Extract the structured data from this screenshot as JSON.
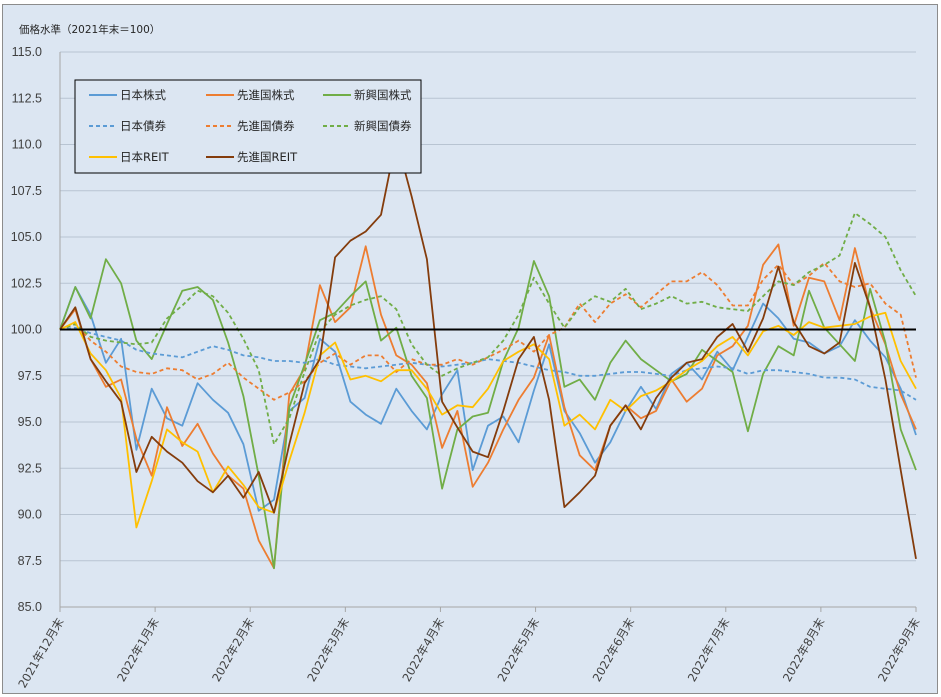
{
  "chart_data": {
    "type": "line",
    "title": "",
    "ylabel": "価格水準（2021年末＝100）",
    "xlabel": "",
    "ylim": [
      85,
      115
    ],
    "yticks": [
      "85.0",
      "87.5",
      "90.0",
      "92.5",
      "95.0",
      "97.5",
      "100.0",
      "102.5",
      "105.0",
      "107.5",
      "110.0",
      "112.5",
      "115.0"
    ],
    "xticks": [
      "2021年12月末",
      "2022年1月末",
      "2022年2月末",
      "2022年3月末",
      "2022年4月末",
      "2022年5月末",
      "2022年6月末",
      "2022年7月末",
      "2022年8月末",
      "2022年9月末"
    ],
    "reference_line": 100,
    "grid": true,
    "legend_position": "top-left",
    "series": [
      {
        "name": "日本株式",
        "color": "#5b9bd5",
        "dash": false,
        "values": [
          100,
          102.3,
          100.8,
          98.2,
          99.5,
          93.5,
          96.8,
          95.2,
          94.8,
          97.1,
          96.2,
          95.5,
          93.8,
          90.2,
          90.8,
          95.6,
          96.3,
          99.5,
          98.8,
          96.1,
          95.4,
          94.9,
          96.8,
          95.6,
          94.6,
          96.5,
          97.8,
          92.4,
          94.8,
          95.3,
          93.9,
          96.7,
          99.2,
          95.6,
          94.4,
          92.8,
          93.9,
          95.6,
          96.9,
          95.7,
          97.6,
          98.2,
          97.3,
          98.8,
          97.8,
          99.6,
          101.4,
          100.6,
          99.5,
          99.3,
          98.7,
          99.1,
          100.5,
          99.4,
          98.5,
          96.8,
          94.3
        ]
      },
      {
        "name": "先進国株式",
        "color": "#ed7d31",
        "dash": false,
        "values": [
          100,
          101.1,
          98.4,
          96.9,
          97.3,
          94.1,
          92.1,
          95.8,
          93.7,
          94.9,
          93.3,
          92.1,
          91.4,
          88.6,
          87.1,
          96.5,
          97.9,
          102.4,
          100.4,
          101.2,
          104.5,
          100.8,
          98.6,
          98.1,
          97.1,
          93.6,
          95.6,
          91.5,
          92.8,
          94.6,
          96.2,
          97.4,
          99.7,
          95.8,
          93.2,
          92.4,
          94.8,
          95.9,
          95.2,
          95.6,
          97.3,
          96.1,
          96.8,
          98.6,
          99.1,
          100.2,
          103.5,
          104.6,
          100.2,
          102.8,
          102.6,
          100.5,
          104.4,
          101.2,
          99.2,
          96.5,
          94.6
        ]
      },
      {
        "name": "新興国株式",
        "color": "#70ad47",
        "dash": false,
        "values": [
          100,
          102.3,
          100.6,
          103.8,
          102.5,
          99.4,
          98.4,
          100.3,
          102.1,
          102.3,
          101.6,
          99.3,
          96.4,
          92.1,
          87.1,
          95.8,
          98.1,
          100.5,
          100.9,
          101.8,
          102.6,
          99.4,
          100.1,
          97.5,
          96.3,
          91.4,
          94.6,
          95.3,
          95.5,
          98.3,
          100.1,
          103.7,
          101.8,
          96.9,
          97.3,
          96.2,
          98.2,
          99.4,
          98.4,
          97.8,
          97.2,
          97.6,
          98.9,
          98.3,
          97.7,
          94.5,
          97.6,
          99.1,
          98.6,
          102.1,
          100.1,
          99.2,
          98.3,
          102.2,
          99.3,
          94.6,
          92.4
        ]
      },
      {
        "name": "日本債券",
        "color": "#5b9bd5",
        "dash": true,
        "values": [
          100,
          100.1,
          99.8,
          99.6,
          99.4,
          98.9,
          98.7,
          98.6,
          98.5,
          98.8,
          99.1,
          98.9,
          98.6,
          98.5,
          98.3,
          98.3,
          98.2,
          98.4,
          98.1,
          98.0,
          97.9,
          98.0,
          98.1,
          98.2,
          98.1,
          98.0,
          98.1,
          98.2,
          98.4,
          98.3,
          98.2,
          98.0,
          97.8,
          97.7,
          97.5,
          97.5,
          97.6,
          97.7,
          97.7,
          97.6,
          97.5,
          97.8,
          97.9,
          98.0,
          97.9,
          97.6,
          97.8,
          97.8,
          97.7,
          97.6,
          97.4,
          97.4,
          97.3,
          96.9,
          96.8,
          96.7,
          96.2
        ]
      },
      {
        "name": "先進国債券",
        "color": "#ed7d31",
        "dash": true,
        "values": [
          100,
          100.3,
          99.4,
          98.8,
          98.0,
          97.7,
          97.6,
          97.9,
          97.8,
          97.3,
          97.6,
          98.2,
          97.4,
          96.8,
          96.2,
          96.6,
          97.2,
          98.2,
          98.7,
          98.1,
          98.6,
          98.6,
          97.7,
          98.4,
          98.1,
          98.1,
          98.4,
          98.1,
          98.5,
          98.9,
          99.4,
          98.8,
          99.7,
          100.1,
          101.4,
          100.4,
          101.4,
          101.9,
          101.2,
          101.9,
          102.6,
          102.6,
          103.1,
          102.4,
          101.3,
          101.3,
          102.7,
          103.5,
          102.4,
          102.9,
          103.6,
          102.6,
          102.3,
          102.5,
          101.4,
          100.8,
          97.4
        ]
      },
      {
        "name": "新興国債券",
        "color": "#70ad47",
        "dash": true,
        "values": [
          100,
          100.3,
          99.6,
          99.4,
          99.3,
          99.2,
          99.3,
          100.6,
          101.3,
          102.1,
          101.8,
          100.9,
          99.5,
          97.8,
          93.8,
          95.2,
          97.7,
          99.9,
          100.8,
          101.3,
          101.6,
          101.8,
          101.1,
          99.2,
          98.1,
          97.5,
          97.9,
          98.2,
          98.5,
          99.4,
          100.8,
          102.8,
          101.4,
          100.1,
          101.2,
          101.8,
          101.5,
          102.2,
          101.1,
          101.4,
          101.8,
          101.4,
          101.5,
          101.2,
          101.1,
          101.0,
          101.8,
          102.6,
          102.4,
          103.1,
          103.5,
          104.0,
          106.3,
          105.7,
          105.0,
          103.2,
          101.8
        ]
      },
      {
        "name": "日本REIT",
        "color": "#ffc000",
        "dash": false,
        "values": [
          100,
          100.4,
          98.7,
          97.8,
          96.3,
          89.3,
          91.8,
          94.6,
          93.9,
          93.4,
          91.2,
          92.6,
          91.6,
          90.4,
          90.1,
          92.9,
          95.5,
          98.6,
          99.3,
          97.3,
          97.5,
          97.2,
          97.8,
          97.8,
          96.8,
          95.4,
          95.9,
          95.8,
          96.8,
          98.3,
          98.8,
          99.2,
          98.4,
          94.8,
          95.4,
          94.6,
          96.2,
          95.6,
          96.4,
          96.7,
          97.2,
          97.8,
          98.3,
          99.1,
          99.6,
          98.6,
          99.9,
          100.2,
          99.7,
          100.4,
          100.1,
          100.2,
          100.3,
          100.7,
          100.9,
          98.3,
          96.8
        ]
      },
      {
        "name": "先進国REIT",
        "color": "#843c0c",
        "dash": false,
        "values": [
          100,
          101.2,
          98.4,
          97.2,
          96.1,
          92.3,
          94.2,
          93.4,
          92.8,
          91.8,
          91.2,
          92.1,
          90.9,
          92.3,
          90.1,
          93.8,
          97.1,
          98.4,
          103.9,
          104.8,
          105.3,
          106.2,
          110.3,
          107.2,
          103.8,
          96.1,
          94.7,
          93.4,
          93.1,
          95.6,
          98.4,
          99.6,
          96.2,
          90.4,
          91.2,
          92.1,
          94.8,
          95.9,
          94.6,
          96.3,
          97.4,
          98.2,
          98.4,
          99.6,
          100.3,
          98.8,
          100.6,
          103.4,
          100.4,
          99.1,
          98.7,
          99.3,
          103.6,
          101.2,
          97.3,
          92.4,
          87.6
        ]
      }
    ]
  }
}
